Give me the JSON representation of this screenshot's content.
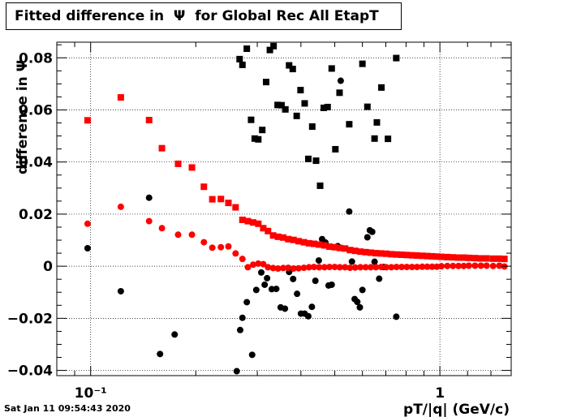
{
  "chart_data": {
    "type": "scatter",
    "title": "Fitted difference in  Ψ  for Global Rec All EtapT",
    "xlabel": "pT/|q| (GeV/c)",
    "ylabel": "difference in Ψ",
    "x_scale": "log",
    "xlim": [
      0.08,
      1.6
    ],
    "ylim": [
      -0.042,
      0.086
    ],
    "x_tick_labels": [
      {
        "x": 0.1,
        "text": "10⁻¹"
      },
      {
        "x": 1,
        "text": "1"
      }
    ],
    "y_tick_labels": [
      {
        "y": -0.04,
        "text": "−0.04"
      },
      {
        "y": -0.02,
        "text": "−0.02"
      },
      {
        "y": 0,
        "text": "0"
      },
      {
        "y": 0.02,
        "text": "0.02"
      },
      {
        "y": 0.04,
        "text": "0.04"
      },
      {
        "y": 0.06,
        "text": "0.06"
      },
      {
        "y": 0.08,
        "text": "0.08"
      }
    ],
    "grid": true,
    "colors": {
      "black": "#000000",
      "red": "#ff0000"
    },
    "series": [
      {
        "color": "black",
        "marker": "square",
        "points": [
          [
            0.267,
            0.0795
          ],
          [
            0.272,
            0.0773
          ],
          [
            0.28,
            0.0835
          ],
          [
            0.288,
            0.0562
          ],
          [
            0.295,
            0.049
          ],
          [
            0.302,
            0.0487
          ],
          [
            0.31,
            0.0523
          ],
          [
            0.318,
            0.0707
          ],
          [
            0.326,
            0.083
          ],
          [
            0.334,
            0.0845
          ],
          [
            0.343,
            0.0619
          ],
          [
            0.352,
            0.0618
          ],
          [
            0.361,
            0.0602
          ],
          [
            0.37,
            0.0771
          ],
          [
            0.379,
            0.0757
          ],
          [
            0.389,
            0.0577
          ],
          [
            0.399,
            0.0676
          ],
          [
            0.41,
            0.0625
          ],
          [
            0.42,
            0.0412
          ],
          [
            0.431,
            0.0536
          ],
          [
            0.442,
            0.0405
          ],
          [
            0.454,
            0.0309
          ],
          [
            0.465,
            0.0608
          ],
          [
            0.477,
            0.0611
          ],
          [
            0.49,
            0.0759
          ],
          [
            0.502,
            0.0449
          ],
          [
            0.516,
            0.0666
          ],
          [
            0.55,
            0.0545
          ],
          [
            0.6,
            0.0777
          ],
          [
            0.62,
            0.0612
          ],
          [
            0.65,
            0.049
          ],
          [
            0.66,
            0.0552
          ],
          [
            0.68,
            0.0686
          ],
          [
            0.71,
            0.0489
          ],
          [
            0.75,
            0.0799
          ]
        ]
      },
      {
        "color": "black",
        "marker": "circle",
        "points": [
          [
            0.098,
            0.0069
          ],
          [
            0.122,
            -0.0096
          ],
          [
            0.147,
            0.0263
          ],
          [
            0.158,
            -0.0337
          ],
          [
            0.174,
            -0.0262
          ],
          [
            0.262,
            -0.0403
          ],
          [
            0.268,
            -0.0245
          ],
          [
            0.272,
            -0.0198
          ],
          [
            0.28,
            -0.0138
          ],
          [
            0.29,
            -0.034
          ],
          [
            0.298,
            -0.0091
          ],
          [
            0.308,
            -0.0024
          ],
          [
            0.315,
            -0.0071
          ],
          [
            0.32,
            -0.0046
          ],
          [
            0.33,
            -0.0088
          ],
          [
            0.34,
            -0.0087
          ],
          [
            0.35,
            -0.0158
          ],
          [
            0.36,
            -0.0163
          ],
          [
            0.37,
            -0.0022
          ],
          [
            0.38,
            -0.0049
          ],
          [
            0.39,
            -0.0106
          ],
          [
            0.4,
            -0.0182
          ],
          [
            0.41,
            -0.0182
          ],
          [
            0.42,
            -0.0192
          ],
          [
            0.43,
            -0.0156
          ],
          [
            0.44,
            -0.0056
          ],
          [
            0.45,
            0.0022
          ],
          [
            0.46,
            0.0104
          ],
          [
            0.47,
            0.0091
          ],
          [
            0.48,
            -0.0074
          ],
          [
            0.49,
            -0.0071
          ],
          [
            0.51,
            0.0077
          ],
          [
            0.52,
            0.0712
          ],
          [
            0.55,
            0.021
          ],
          [
            0.56,
            0.0018
          ],
          [
            0.57,
            -0.0126
          ],
          [
            0.58,
            -0.0137
          ],
          [
            0.59,
            -0.0158
          ],
          [
            0.6,
            -0.0091
          ],
          [
            0.62,
            0.0111
          ],
          [
            0.63,
            0.0138
          ],
          [
            0.64,
            0.0132
          ],
          [
            0.65,
            0.0017
          ],
          [
            0.67,
            -0.0048
          ],
          [
            0.69,
            -0.0003
          ],
          [
            0.75,
            -0.0194
          ]
        ]
      },
      {
        "color": "red",
        "marker": "square",
        "points": [
          [
            0.098,
            0.056
          ],
          [
            0.122,
            0.0648
          ],
          [
            0.147,
            0.0561
          ],
          [
            0.16,
            0.0453
          ],
          [
            0.178,
            0.0393
          ],
          [
            0.195,
            0.0379
          ],
          [
            0.211,
            0.0305
          ],
          [
            0.223,
            0.0257
          ],
          [
            0.236,
            0.0258
          ],
          [
            0.248,
            0.0243
          ],
          [
            0.26,
            0.0226
          ],
          [
            0.272,
            0.0178
          ],
          [
            0.282,
            0.0173
          ],
          [
            0.292,
            0.0168
          ],
          [
            0.302,
            0.0163
          ],
          [
            0.312,
            0.0146
          ],
          [
            0.322,
            0.0135
          ],
          [
            0.333,
            0.0118
          ],
          [
            0.344,
            0.0113
          ],
          [
            0.356,
            0.011
          ],
          [
            0.368,
            0.0104
          ],
          [
            0.381,
            0.0101
          ],
          [
            0.394,
            0.0096
          ],
          [
            0.408,
            0.0092
          ],
          [
            0.422,
            0.0088
          ],
          [
            0.436,
            0.0086
          ],
          [
            0.451,
            0.0083
          ],
          [
            0.467,
            0.008
          ],
          [
            0.483,
            0.0075
          ],
          [
            0.5,
            0.0073
          ],
          [
            0.517,
            0.007
          ],
          [
            0.535,
            0.0068
          ],
          [
            0.553,
            0.0062
          ],
          [
            0.572,
            0.0059
          ],
          [
            0.592,
            0.0056
          ],
          [
            0.613,
            0.0054
          ],
          [
            0.634,
            0.0052
          ],
          [
            0.656,
            0.005
          ],
          [
            0.679,
            0.0049
          ],
          [
            0.702,
            0.0048
          ],
          [
            0.726,
            0.0046
          ],
          [
            0.751,
            0.0045
          ],
          [
            0.777,
            0.0044
          ],
          [
            0.804,
            0.0043
          ],
          [
            0.832,
            0.0042
          ],
          [
            0.86,
            0.0041
          ],
          [
            0.89,
            0.004
          ],
          [
            0.92,
            0.0039
          ],
          [
            0.95,
            0.0038
          ],
          [
            0.98,
            0.0037
          ],
          [
            1.01,
            0.0036
          ],
          [
            1.05,
            0.0035
          ],
          [
            1.09,
            0.0034
          ],
          [
            1.13,
            0.0033
          ],
          [
            1.17,
            0.0033
          ],
          [
            1.21,
            0.0032
          ],
          [
            1.26,
            0.0031
          ],
          [
            1.31,
            0.003
          ],
          [
            1.36,
            0.003
          ],
          [
            1.42,
            0.0029
          ],
          [
            1.48,
            0.0029
          ],
          [
            1.53,
            0.0028
          ]
        ]
      },
      {
        "color": "red",
        "marker": "circle",
        "points": [
          [
            0.098,
            0.0163
          ],
          [
            0.122,
            0.0228
          ],
          [
            0.147,
            0.0173
          ],
          [
            0.16,
            0.0146
          ],
          [
            0.178,
            0.0121
          ],
          [
            0.195,
            0.0121
          ],
          [
            0.211,
            0.0092
          ],
          [
            0.223,
            0.0071
          ],
          [
            0.236,
            0.0073
          ],
          [
            0.248,
            0.0076
          ],
          [
            0.26,
            0.0049
          ],
          [
            0.272,
            0.0028
          ],
          [
            0.282,
            -0.0004
          ],
          [
            0.292,
            0.0006
          ],
          [
            0.302,
            0.001
          ],
          [
            0.312,
            0.0008
          ],
          [
            0.322,
            -0.0004
          ],
          [
            0.333,
            -0.0007
          ],
          [
            0.344,
            -0.0009
          ],
          [
            0.356,
            -0.0007
          ],
          [
            0.368,
            -0.0006
          ],
          [
            0.381,
            -0.0009
          ],
          [
            0.394,
            -0.0008
          ],
          [
            0.408,
            -0.0006
          ],
          [
            0.422,
            -0.0004
          ],
          [
            0.436,
            -0.0003
          ],
          [
            0.451,
            -0.0004
          ],
          [
            0.467,
            -0.0004
          ],
          [
            0.483,
            -0.0003
          ],
          [
            0.5,
            -0.0003
          ],
          [
            0.517,
            -0.0004
          ],
          [
            0.535,
            -0.0004
          ],
          [
            0.553,
            -0.0006
          ],
          [
            0.572,
            -0.0005
          ],
          [
            0.592,
            -0.0004
          ],
          [
            0.613,
            -0.0004
          ],
          [
            0.634,
            -0.0004
          ],
          [
            0.656,
            -0.0004
          ],
          [
            0.679,
            -0.0003
          ],
          [
            0.702,
            -0.0004
          ],
          [
            0.726,
            -0.0004
          ],
          [
            0.751,
            -0.0003
          ],
          [
            0.777,
            -0.0003
          ],
          [
            0.804,
            -0.0003
          ],
          [
            0.832,
            -0.0003
          ],
          [
            0.86,
            -0.0003
          ],
          [
            0.89,
            -0.0002
          ],
          [
            0.92,
            -0.0002
          ],
          [
            0.95,
            -0.0002
          ],
          [
            0.98,
            -0.0002
          ],
          [
            1.01,
            0.0
          ],
          [
            1.05,
            0.0001
          ],
          [
            1.09,
            0.0001
          ],
          [
            1.13,
            0.0001
          ],
          [
            1.17,
            0.0001
          ],
          [
            1.21,
            0.0002
          ],
          [
            1.26,
            0.0002
          ],
          [
            1.31,
            0.0002
          ],
          [
            1.36,
            0.0002
          ],
          [
            1.42,
            0.0001
          ],
          [
            1.48,
            0.0002
          ],
          [
            1.53,
            -0.0001
          ]
        ]
      }
    ]
  },
  "timestamp": "Sat Jan 11 09:54:43 2020"
}
